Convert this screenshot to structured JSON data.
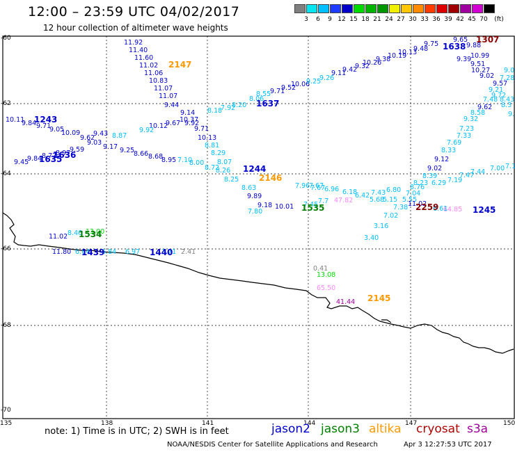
{
  "title": "12:00 – 23:59 UTC 04/02/2017",
  "subtitle": "12 hour collection of altimeter wave heights",
  "colorbar": {
    "unit": "(ft)",
    "labels": [
      "3",
      "6",
      "9",
      "12",
      "15",
      "18",
      "21",
      "24",
      "27",
      "30",
      "33",
      "36",
      "39",
      "42",
      "45",
      "70"
    ],
    "colors": [
      "#7f7f7f",
      "#00e5ee",
      "#00bfff",
      "#1e3cff",
      "#0000c8",
      "#00dc00",
      "#00b400",
      "#009600",
      "#f0f000",
      "#ffc800",
      "#ff8c00",
      "#ff3c00",
      "#dc0000",
      "#a00000",
      "#a000a0",
      "#d200d2",
      "#000000"
    ]
  },
  "map": {
    "lon_labels": [
      "135",
      "138",
      "141",
      "144",
      "147",
      "150"
    ],
    "lat_labels": [
      "-60",
      "-62",
      "-64",
      "-66",
      "-68",
      "-70"
    ],
    "tracks": [
      {
        "name": "jason2-1243",
        "color": "#0000cd",
        "points": [
          [
            "10.11"
          ],
          [
            "9.84"
          ],
          [
            "9.71"
          ],
          [
            "9.05"
          ],
          [
            "10.09"
          ],
          [
            "9.62"
          ],
          [
            "9.03"
          ],
          [
            "9.17"
          ],
          [
            "9.25"
          ],
          [
            "8.66"
          ],
          [
            "8.68"
          ],
          [
            "8.95"
          ]
        ]
      },
      {
        "name": "jason2-1635",
        "color": "#0000cd",
        "points": [
          [
            "9.45"
          ],
          [
            "9.84"
          ],
          [
            "8.77"
          ],
          [
            "8.97"
          ],
          [
            "9.59"
          ]
        ]
      }
    ],
    "pass_labels": [
      {
        "text": "1243",
        "color": "#0000cd"
      },
      {
        "text": "1635",
        "color": "#0000cd"
      },
      {
        "text": "1636",
        "color": "#0000cd"
      },
      {
        "text": "2147",
        "color": "#ff9900"
      },
      {
        "text": "1637",
        "color": "#0000cd"
      },
      {
        "text": "1638",
        "color": "#0000cd"
      },
      {
        "text": "1307",
        "color": "#8b0000"
      },
      {
        "text": "1244",
        "color": "#0000cd"
      },
      {
        "text": "2146",
        "color": "#ff9900"
      },
      {
        "text": "1535",
        "color": "#008000"
      },
      {
        "text": "2259",
        "color": "#8b0000"
      },
      {
        "text": "1245",
        "color": "#0000cd"
      },
      {
        "text": "1534",
        "color": "#008000"
      },
      {
        "text": "1439",
        "color": "#0000cd"
      },
      {
        "text": "1440",
        "color": "#0000cd"
      },
      {
        "text": "2145",
        "color": "#ff9900"
      }
    ],
    "values": [
      {
        "t": "11.92",
        "c": "#0000cd"
      },
      {
        "t": "11.40",
        "c": "#0000cd"
      },
      {
        "t": "11.60",
        "c": "#0000cd"
      },
      {
        "t": "11.02",
        "c": "#0000cd"
      },
      {
        "t": "11.06",
        "c": "#0000cd"
      },
      {
        "t": "10.83",
        "c": "#0000cd"
      },
      {
        "t": "11.07",
        "c": "#0000cd"
      },
      {
        "t": "11.07",
        "c": "#0000cd"
      },
      {
        "t": "9.44",
        "c": "#0000cd"
      },
      {
        "t": "9.14",
        "c": "#0000cd"
      },
      {
        "t": "10.12",
        "c": "#0000cd"
      },
      {
        "t": "9.67",
        "c": "#0000cd"
      },
      {
        "t": "10.37",
        "c": "#0000cd"
      },
      {
        "t": "9.92",
        "c": "#0000cd"
      },
      {
        "t": "9.71",
        "c": "#0000cd"
      },
      {
        "t": "10.13",
        "c": "#0000cd"
      },
      {
        "t": "9.43",
        "c": "#0000cd"
      },
      {
        "t": "9.92",
        "c": "#00bfff"
      },
      {
        "t": "8.87",
        "c": "#00bfff"
      },
      {
        "t": "8.81",
        "c": "#00bfff"
      },
      {
        "t": "8.29",
        "c": "#00bfff"
      },
      {
        "t": "8.07",
        "c": "#00bfff"
      },
      {
        "t": "7.10",
        "c": "#00bfff"
      },
      {
        "t": "8.00",
        "c": "#00bfff"
      },
      {
        "t": "8.72",
        "c": "#00bfff"
      },
      {
        "t": "8.26",
        "c": "#00bfff"
      },
      {
        "t": "8.25",
        "c": "#00bfff"
      },
      {
        "t": "8.63",
        "c": "#00bfff"
      },
      {
        "t": "9.89",
        "c": "#0000cd"
      },
      {
        "t": "9.18",
        "c": "#0000cd"
      },
      {
        "t": "10.01",
        "c": "#0000cd"
      },
      {
        "t": "7.80",
        "c": "#00bfff"
      },
      {
        "t": "8.18",
        "c": "#00bfff"
      },
      {
        "t": "7.92",
        "c": "#00bfff"
      },
      {
        "t": "8.20",
        "c": "#00bfff"
      },
      {
        "t": "8.06",
        "c": "#00bfff"
      },
      {
        "t": "8.55",
        "c": "#00bfff"
      },
      {
        "t": "9.71",
        "c": "#0000cd"
      },
      {
        "t": "9.52",
        "c": "#0000cd"
      },
      {
        "t": "10.06",
        "c": "#0000cd"
      },
      {
        "t": "9.25",
        "c": "#00bfff"
      },
      {
        "t": "9.26",
        "c": "#00bfff"
      },
      {
        "t": "9.11",
        "c": "#0000cd"
      },
      {
        "t": "9.42",
        "c": "#0000cd"
      },
      {
        "t": "9.32",
        "c": "#0000cd"
      },
      {
        "t": "10.26",
        "c": "#0000cd"
      },
      {
        "t": "9.38",
        "c": "#0000cd"
      },
      {
        "t": "10.19",
        "c": "#0000cd"
      },
      {
        "t": "10.13",
        "c": "#0000cd"
      },
      {
        "t": "9.48",
        "c": "#0000cd"
      },
      {
        "t": "9.75",
        "c": "#0000cd"
      },
      {
        "t": "9.65",
        "c": "#0000cd"
      },
      {
        "t": "9.88",
        "c": "#0000cd"
      },
      {
        "t": "9.39",
        "c": "#0000cd"
      },
      {
        "t": "10.99",
        "c": "#0000cd"
      },
      {
        "t": "9.51",
        "c": "#0000cd"
      },
      {
        "t": "10.27",
        "c": "#0000cd"
      },
      {
        "t": "9.02",
        "c": "#0000cd"
      },
      {
        "t": "9.57",
        "c": "#0000cd"
      },
      {
        "t": "9.72",
        "c": "#00bfff"
      },
      {
        "t": "9.21",
        "c": "#00bfff"
      },
      {
        "t": "7.48",
        "c": "#00bfff"
      },
      {
        "t": "7.28",
        "c": "#00bfff"
      },
      {
        "t": "8.43",
        "c": "#00bfff"
      },
      {
        "t": "8.3",
        "c": "#00bfff"
      },
      {
        "t": "9.0",
        "c": "#00bfff"
      },
      {
        "t": "9.",
        "c": "#00bfff"
      },
      {
        "t": "9.62",
        "c": "#0000cd"
      },
      {
        "t": "8.58",
        "c": "#00bfff"
      },
      {
        "t": "9.32",
        "c": "#00bfff"
      },
      {
        "t": "7.23",
        "c": "#00bfff"
      },
      {
        "t": "7.33",
        "c": "#00bfff"
      },
      {
        "t": "7.69",
        "c": "#00bfff"
      },
      {
        "t": "8.33",
        "c": "#00bfff"
      },
      {
        "t": "9.12",
        "c": "#0000cd"
      },
      {
        "t": "9.02",
        "c": "#0000cd"
      },
      {
        "t": "8.39",
        "c": "#00bfff"
      },
      {
        "t": "8.23",
        "c": "#00bfff"
      },
      {
        "t": "6.29",
        "c": "#00bfff"
      },
      {
        "t": "7.19",
        "c": "#00bfff"
      },
      {
        "t": "7.47",
        "c": "#00bfff"
      },
      {
        "t": "7.44",
        "c": "#00bfff"
      },
      {
        "t": "7.00",
        "c": "#00bfff"
      },
      {
        "t": "7.1",
        "c": "#00bfff"
      },
      {
        "t": "8.76",
        "c": "#00bfff"
      },
      {
        "t": "7.04",
        "c": "#00bfff"
      },
      {
        "t": "6.80",
        "c": "#00bfff"
      },
      {
        "t": "7.43",
        "c": "#00bfff"
      },
      {
        "t": "6.42",
        "c": "#00bfff"
      },
      {
        "t": "6.18",
        "c": "#00bfff"
      },
      {
        "t": "6.96",
        "c": "#00bfff"
      },
      {
        "t": "7.67",
        "c": "#00bfff"
      },
      {
        "t": "7.96",
        "c": "#00bfff"
      },
      {
        "t": "7.67",
        "c": "#00bfff"
      },
      {
        "t": "5.68",
        "c": "#00bfff"
      },
      {
        "t": "5.15",
        "c": "#00bfff"
      },
      {
        "t": "5.55",
        "c": "#00bfff"
      },
      {
        "t": "7.38",
        "c": "#00bfff"
      },
      {
        "t": "11.02",
        "c": "#0000cd"
      },
      {
        "t": "7.02",
        "c": "#00bfff"
      },
      {
        "t": "3.16",
        "c": "#00bfff"
      },
      {
        "t": "3.40",
        "c": "#00bfff"
      },
      {
        "t": "7.45",
        "c": "#00bfff"
      },
      {
        "t": "7.7",
        "c": "#00bfff"
      },
      {
        "t": "47.82",
        "c": "#ff88ff"
      },
      {
        "t": "64.85",
        "c": "#ff88ff"
      },
      {
        "t": "6.61",
        "c": "#00bfff"
      },
      {
        "t": "11.02",
        "c": "#0000cd"
      },
      {
        "t": "8.46",
        "c": "#00bfff"
      },
      {
        "t": "13.00",
        "c": "#00dc00"
      },
      {
        "t": "11.80",
        "c": "#0000cd"
      },
      {
        "t": "6.64",
        "c": "#00bfff"
      },
      {
        "t": "6.84",
        "c": "#00bfff"
      },
      {
        "t": "6.97",
        "c": "#00bfff"
      },
      {
        "t": "3.71",
        "c": "#00bfff"
      },
      {
        "t": "2.41",
        "c": "#7f7f7f"
      },
      {
        "t": "0.41",
        "c": "#7f7f7f"
      },
      {
        "t": "13.08",
        "c": "#00dc00"
      },
      {
        "t": "65.50",
        "c": "#ff88ff"
      },
      {
        "t": "41.44",
        "c": "#a000a0"
      }
    ]
  },
  "note": "note:  1) Time is in UTC;  2) SWH is in feet",
  "satellites": [
    {
      "name": "jason2",
      "color": "#0000cd"
    },
    {
      "name": "jason3",
      "color": "#008000"
    },
    {
      "name": "altika",
      "color": "#ff9900"
    },
    {
      "name": "cryosat",
      "color": "#b00000"
    },
    {
      "name": "s3a",
      "color": "#a000a0"
    }
  ],
  "credit": "NOAA/NESDIS Center for Satellite Applications and Research",
  "timestamp": "Apr  3 12:27:53 UTC 2017"
}
